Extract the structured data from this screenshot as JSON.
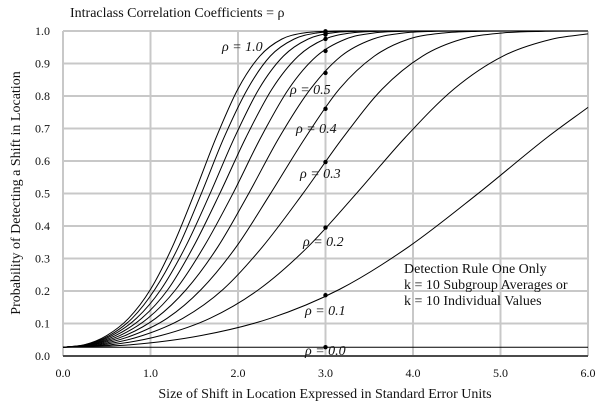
{
  "chart_data": {
    "type": "line",
    "title": "Intraclass Correlation Coefficients  = ρ",
    "xlabel": "Size of Shift in Location Expressed in Standard Error Units",
    "ylabel": "Probability of Detecting a Shift in Location",
    "xlim": [
      0,
      6
    ],
    "ylim": [
      0,
      1
    ],
    "xticks": [
      "0.0",
      "1.0",
      "2.0",
      "3.0",
      "4.0",
      "5.0",
      "6.0"
    ],
    "yticks": [
      "0.0",
      "0.1",
      "0.2",
      "0.3",
      "0.4",
      "0.5",
      "0.6",
      "0.7",
      "0.8",
      "0.9",
      "1.0"
    ],
    "grid": true,
    "marker_x": 3.0,
    "annotation": [
      "Detection Rule One Only",
      "k = 10 Subgroup Averages or",
      "k = 10 Individual Values"
    ],
    "series": [
      {
        "rho": "0.0",
        "label": "ρ = 0.0",
        "points": [
          [
            0,
            0.027
          ],
          [
            6,
            0.027
          ]
        ]
      },
      {
        "rho": "0.1",
        "label": "ρ = 0.1",
        "points": [
          [
            0,
            0.027
          ],
          [
            0.79,
            0.035
          ],
          [
            1.58,
            0.063
          ],
          [
            2.37,
            0.116
          ],
          [
            3.16,
            0.205
          ],
          [
            3.95,
            0.336
          ],
          [
            4.74,
            0.499
          ],
          [
            5.53,
            0.672
          ],
          [
            6,
            0.765
          ]
        ]
      },
      {
        "rho": "0.2",
        "label": "ρ = 0.2",
        "points": [
          [
            0,
            0.027
          ],
          [
            0.56,
            0.035
          ],
          [
            1.12,
            0.063
          ],
          [
            1.68,
            0.116
          ],
          [
            2.24,
            0.205
          ],
          [
            2.8,
            0.336
          ],
          [
            3.35,
            0.499
          ],
          [
            3.91,
            0.672
          ],
          [
            4.47,
            0.822
          ],
          [
            5.03,
            0.923
          ],
          [
            5.59,
            0.975
          ],
          [
            6,
            0.991
          ]
        ]
      },
      {
        "rho": "0.3",
        "label": "ρ = 0.3",
        "points": [
          [
            0,
            0.027
          ],
          [
            0.46,
            0.035
          ],
          [
            0.91,
            0.063
          ],
          [
            1.37,
            0.116
          ],
          [
            1.83,
            0.205
          ],
          [
            2.28,
            0.336
          ],
          [
            2.74,
            0.499
          ],
          [
            3.2,
            0.672
          ],
          [
            3.65,
            0.822
          ],
          [
            4.11,
            0.923
          ],
          [
            4.56,
            0.975
          ],
          [
            5.02,
            0.994
          ],
          [
            5.48,
            0.999
          ],
          [
            6,
            1.0
          ]
        ]
      },
      {
        "rho": "0.4",
        "label": "ρ = 0.4",
        "points": [
          [
            0,
            0.027
          ],
          [
            0.4,
            0.035
          ],
          [
            0.79,
            0.063
          ],
          [
            1.19,
            0.116
          ],
          [
            1.58,
            0.205
          ],
          [
            1.98,
            0.336
          ],
          [
            2.37,
            0.499
          ],
          [
            2.77,
            0.672
          ],
          [
            3.16,
            0.822
          ],
          [
            3.56,
            0.923
          ],
          [
            3.95,
            0.975
          ],
          [
            4.35,
            0.994
          ],
          [
            4.74,
            0.999
          ],
          [
            5.14,
            1.0
          ],
          [
            6,
            1.0
          ]
        ]
      },
      {
        "rho": "0.5",
        "label": "ρ = 0.5",
        "points": [
          [
            0,
            0.027
          ],
          [
            0.35,
            0.035
          ],
          [
            0.71,
            0.063
          ],
          [
            1.06,
            0.116
          ],
          [
            1.41,
            0.205
          ],
          [
            1.77,
            0.336
          ],
          [
            2.12,
            0.499
          ],
          [
            2.47,
            0.672
          ],
          [
            2.83,
            0.822
          ],
          [
            3.18,
            0.923
          ],
          [
            3.54,
            0.975
          ],
          [
            3.89,
            0.994
          ],
          [
            4.24,
            0.999
          ],
          [
            4.6,
            1.0
          ],
          [
            6,
            1.0
          ]
        ]
      },
      {
        "rho": "0.6",
        "label": "",
        "points": [
          [
            0,
            0.027
          ],
          [
            0.32,
            0.035
          ],
          [
            0.65,
            0.063
          ],
          [
            0.97,
            0.116
          ],
          [
            1.29,
            0.205
          ],
          [
            1.61,
            0.336
          ],
          [
            1.94,
            0.499
          ],
          [
            2.26,
            0.672
          ],
          [
            2.58,
            0.822
          ],
          [
            2.9,
            0.923
          ],
          [
            3.23,
            0.975
          ],
          [
            3.55,
            0.994
          ],
          [
            3.87,
            0.999
          ],
          [
            4.2,
            1.0
          ],
          [
            6,
            1.0
          ]
        ]
      },
      {
        "rho": "0.7",
        "label": "",
        "points": [
          [
            0,
            0.027
          ],
          [
            0.3,
            0.035
          ],
          [
            0.6,
            0.063
          ],
          [
            0.9,
            0.116
          ],
          [
            1.2,
            0.205
          ],
          [
            1.49,
            0.336
          ],
          [
            1.79,
            0.499
          ],
          [
            2.09,
            0.672
          ],
          [
            2.39,
            0.822
          ],
          [
            2.69,
            0.923
          ],
          [
            2.99,
            0.975
          ],
          [
            3.29,
            0.994
          ],
          [
            3.59,
            0.999
          ],
          [
            3.88,
            1.0
          ],
          [
            6,
            1.0
          ]
        ]
      },
      {
        "rho": "0.8",
        "label": "",
        "points": [
          [
            0,
            0.027
          ],
          [
            0.28,
            0.035
          ],
          [
            0.56,
            0.063
          ],
          [
            0.84,
            0.116
          ],
          [
            1.12,
            0.205
          ],
          [
            1.4,
            0.336
          ],
          [
            1.68,
            0.499
          ],
          [
            1.96,
            0.672
          ],
          [
            2.24,
            0.822
          ],
          [
            2.52,
            0.923
          ],
          [
            2.8,
            0.975
          ],
          [
            3.07,
            0.994
          ],
          [
            3.35,
            0.999
          ],
          [
            3.63,
            1.0
          ],
          [
            6,
            1.0
          ]
        ]
      },
      {
        "rho": "0.9",
        "label": "",
        "points": [
          [
            0,
            0.027
          ],
          [
            0.26,
            0.035
          ],
          [
            0.53,
            0.063
          ],
          [
            0.79,
            0.116
          ],
          [
            1.05,
            0.205
          ],
          [
            1.32,
            0.336
          ],
          [
            1.58,
            0.499
          ],
          [
            1.84,
            0.672
          ],
          [
            2.11,
            0.822
          ],
          [
            2.37,
            0.923
          ],
          [
            2.64,
            0.975
          ],
          [
            2.9,
            0.994
          ],
          [
            3.16,
            0.999
          ],
          [
            3.43,
            1.0
          ],
          [
            6,
            1.0
          ]
        ]
      },
      {
        "rho": "1.0",
        "label": "ρ = 1.0",
        "points": [
          [
            0,
            0.027
          ],
          [
            0.25,
            0.035
          ],
          [
            0.5,
            0.063
          ],
          [
            0.75,
            0.116
          ],
          [
            1.0,
            0.205
          ],
          [
            1.25,
            0.336
          ],
          [
            1.5,
            0.499
          ],
          [
            1.75,
            0.672
          ],
          [
            2.0,
            0.822
          ],
          [
            2.25,
            0.923
          ],
          [
            2.5,
            0.975
          ],
          [
            2.75,
            0.994
          ],
          [
            3.0,
            0.999
          ],
          [
            3.25,
            1.0
          ],
          [
            6,
            1.0
          ]
        ]
      }
    ],
    "colors": {
      "line": "#000000",
      "grid": "#c8c8c8"
    }
  }
}
